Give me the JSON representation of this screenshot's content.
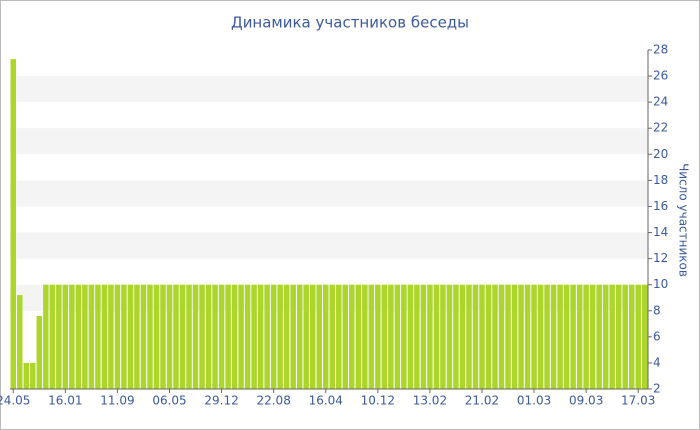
{
  "chart_data": {
    "type": "bar",
    "title": "Динамика участников беседы",
    "y_axis_label": "Число участников",
    "color": "#acd62a",
    "categories": [
      "24.05",
      null,
      null,
      null,
      null,
      null,
      null,
      null,
      "16.01",
      null,
      null,
      null,
      null,
      null,
      null,
      null,
      "11.09",
      null,
      null,
      null,
      null,
      null,
      null,
      null,
      "06.05",
      null,
      null,
      null,
      null,
      null,
      null,
      null,
      "29.12",
      null,
      null,
      null,
      null,
      null,
      null,
      null,
      "22.08",
      null,
      null,
      null,
      null,
      null,
      null,
      null,
      "16.04",
      null,
      null,
      null,
      null,
      null,
      null,
      null,
      "10.12",
      null,
      null,
      null,
      null,
      null,
      null,
      null,
      "13.02",
      null,
      null,
      null,
      null,
      null,
      null,
      null,
      "21.02",
      null,
      null,
      null,
      null,
      null,
      null,
      null,
      "01.03",
      null,
      null,
      null,
      null,
      null,
      null,
      null,
      "09.03",
      null,
      null,
      null,
      null,
      null,
      null,
      null,
      "17.03",
      null
    ],
    "values": [
      27.3,
      9.2,
      4,
      4,
      7.6,
      10,
      10,
      10,
      10,
      10,
      10,
      10,
      10,
      10,
      10,
      10,
      10,
      10,
      10,
      10,
      10,
      10,
      10,
      10,
      10,
      10,
      10,
      10,
      10,
      10,
      10,
      10,
      10,
      10,
      10,
      10,
      10,
      10,
      10,
      10,
      10,
      10,
      10,
      10,
      10,
      10,
      10,
      10,
      10,
      10,
      10,
      10,
      10,
      10,
      10,
      10,
      10,
      10,
      10,
      10,
      10,
      10,
      10,
      10,
      10,
      10,
      10,
      10,
      10,
      10,
      10,
      10,
      10,
      10,
      10,
      10,
      10,
      10,
      10,
      10,
      10,
      10,
      10,
      10,
      10,
      10,
      10,
      10,
      10,
      10,
      10,
      10,
      10,
      10,
      10,
      10,
      10,
      10
    ],
    "ylim": [
      2,
      28
    ],
    "yticks": [
      2,
      4,
      6,
      8,
      10,
      12,
      14,
      16,
      18,
      20,
      22,
      24,
      26,
      28
    ],
    "grid": true
  }
}
